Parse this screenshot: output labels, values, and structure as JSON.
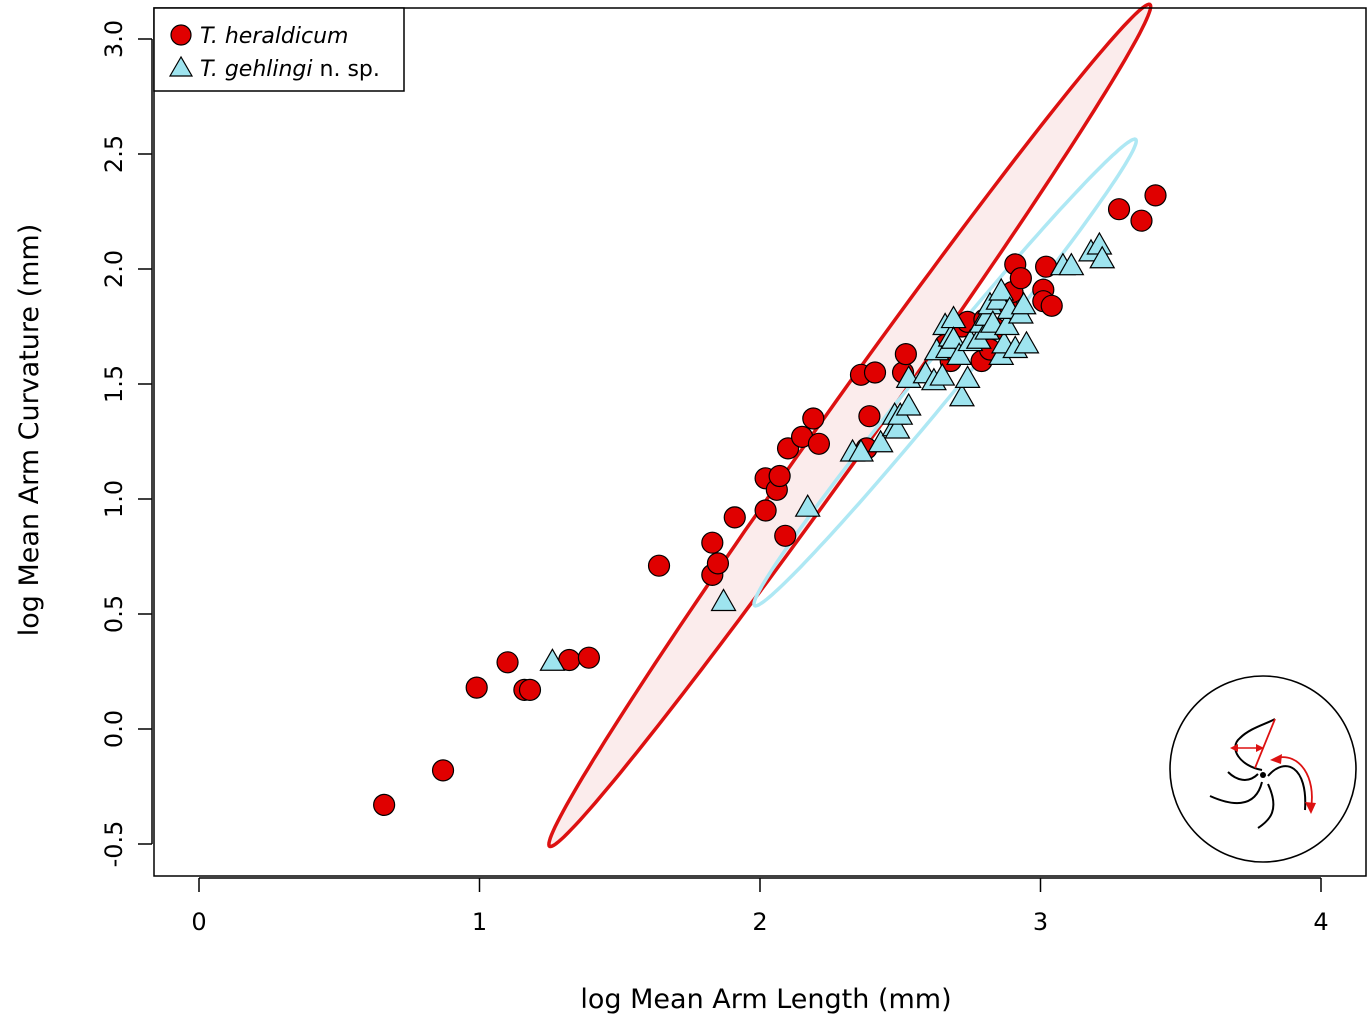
{
  "chart_data": {
    "type": "scatter",
    "title": "",
    "xlabel": "log Mean Arm Length (mm)",
    "ylabel": "log Mean Arm Curvature (mm)",
    "xlim": [
      -0.15,
      4.15
    ],
    "ylim": [
      -0.64,
      3.15
    ],
    "xticks": [
      0,
      1,
      2,
      3,
      4
    ],
    "yticks": [
      -0.5,
      0.0,
      0.5,
      1.0,
      1.5,
      2.0,
      2.5,
      3.0
    ],
    "xtick_labels": [
      "0",
      "1",
      "2",
      "3",
      "4"
    ],
    "ytick_labels": [
      "-0.5",
      "0.0",
      "0.5",
      "1.0",
      "1.5",
      "2.0",
      "2.5",
      "3.0"
    ],
    "grid": false,
    "legend_position": "top-left",
    "series": [
      {
        "name_italic": "T. heraldicum",
        "name_suffix": "",
        "marker": "circle",
        "color": "#e00000",
        "ellipse_color": "#dd1111",
        "ellipse_fill": "#fbecec",
        "points": [
          [
            0.66,
            -0.33
          ],
          [
            0.87,
            -0.18
          ],
          [
            0.99,
            0.18
          ],
          [
            1.1,
            0.29
          ],
          [
            1.16,
            0.17
          ],
          [
            1.18,
            0.17
          ],
          [
            1.32,
            0.3
          ],
          [
            1.39,
            0.31
          ],
          [
            1.64,
            0.71
          ],
          [
            1.83,
            0.81
          ],
          [
            1.83,
            0.67
          ],
          [
            1.85,
            0.72
          ],
          [
            1.91,
            0.92
          ],
          [
            2.02,
            0.95
          ],
          [
            2.02,
            1.09
          ],
          [
            2.06,
            1.04
          ],
          [
            2.07,
            1.1
          ],
          [
            2.09,
            0.84
          ],
          [
            2.1,
            1.22
          ],
          [
            2.15,
            1.27
          ],
          [
            2.19,
            1.35
          ],
          [
            2.21,
            1.24
          ],
          [
            2.36,
            1.54
          ],
          [
            2.38,
            1.22
          ],
          [
            2.39,
            1.36
          ],
          [
            2.41,
            1.55
          ],
          [
            2.51,
            1.55
          ],
          [
            2.52,
            1.63
          ],
          [
            2.66,
            1.67
          ],
          [
            2.68,
            1.6
          ],
          [
            2.72,
            1.75
          ],
          [
            2.74,
            1.77
          ],
          [
            2.79,
            1.6
          ],
          [
            2.8,
            1.78
          ],
          [
            2.82,
            1.65
          ],
          [
            2.84,
            1.74
          ],
          [
            2.88,
            1.84
          ],
          [
            2.9,
            1.9
          ],
          [
            2.91,
            2.02
          ],
          [
            2.93,
            1.96
          ],
          [
            3.01,
            1.91
          ],
          [
            3.01,
            1.86
          ],
          [
            3.02,
            2.01
          ],
          [
            3.04,
            1.84
          ],
          [
            3.28,
            2.26
          ],
          [
            3.36,
            2.21
          ],
          [
            3.41,
            2.32
          ]
        ],
        "ellipse": {
          "cx": 2.32,
          "cy": 1.32,
          "a": 2.12,
          "b": 0.095,
          "angle_deg": 59.7
        }
      },
      {
        "name_italic": "T. gehlingi",
        "name_suffix": " n. sp.",
        "marker": "triangle",
        "color": "#9ee4ef",
        "ellipse_color": "#aee8f4",
        "ellipse_fill": "none",
        "points": [
          [
            1.26,
            0.29
          ],
          [
            1.87,
            0.55
          ],
          [
            2.17,
            0.96
          ],
          [
            2.33,
            1.2
          ],
          [
            2.36,
            1.2
          ],
          [
            2.43,
            1.24
          ],
          [
            2.48,
            1.31
          ],
          [
            2.48,
            1.36
          ],
          [
            2.49,
            1.3
          ],
          [
            2.5,
            1.36
          ],
          [
            2.53,
            1.4
          ],
          [
            2.53,
            1.52
          ],
          [
            2.59,
            1.54
          ],
          [
            2.62,
            1.51
          ],
          [
            2.63,
            1.64
          ],
          [
            2.65,
            1.53
          ],
          [
            2.66,
            1.75
          ],
          [
            2.67,
            1.65
          ],
          [
            2.68,
            1.7
          ],
          [
            2.69,
            1.78
          ],
          [
            2.69,
            1.69
          ],
          [
            2.71,
            1.62
          ],
          [
            2.72,
            1.44
          ],
          [
            2.74,
            1.52
          ],
          [
            2.75,
            1.68
          ],
          [
            2.78,
            1.69
          ],
          [
            2.79,
            1.76
          ],
          [
            2.81,
            1.73
          ],
          [
            2.81,
            1.79
          ],
          [
            2.82,
            1.84
          ],
          [
            2.83,
            1.76
          ],
          [
            2.85,
            1.86
          ],
          [
            2.86,
            1.9
          ],
          [
            2.86,
            1.62
          ],
          [
            2.87,
            1.67
          ],
          [
            2.88,
            1.75
          ],
          [
            2.89,
            1.82
          ],
          [
            2.91,
            1.65
          ],
          [
            2.93,
            1.8
          ],
          [
            2.94,
            1.84
          ],
          [
            2.95,
            1.67
          ],
          [
            3.08,
            2.01
          ],
          [
            3.11,
            2.01
          ],
          [
            3.18,
            2.07
          ],
          [
            3.21,
            2.1
          ],
          [
            3.22,
            2.04
          ]
        ],
        "ellipse": {
          "cx": 2.66,
          "cy": 1.55,
          "a": 1.22,
          "b": 0.072,
          "angle_deg": 56.2
        }
      }
    ],
    "inset": {
      "description_icon": "spiral-arm-measurement-icon"
    }
  }
}
